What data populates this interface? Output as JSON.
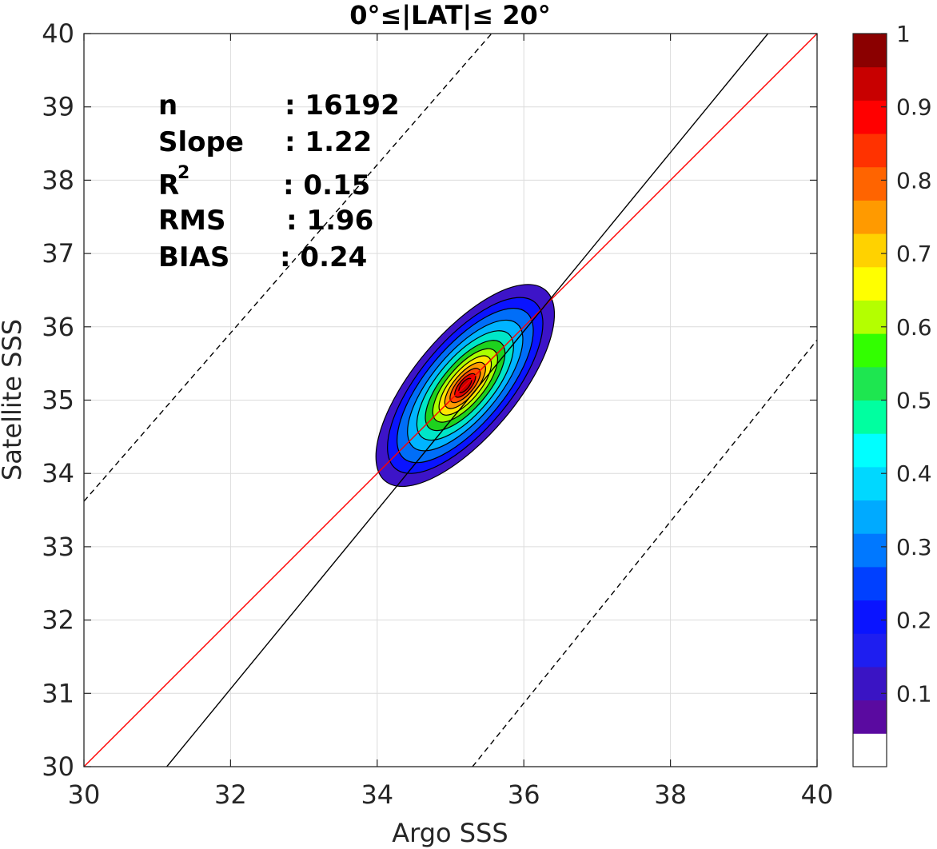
{
  "chart_data": {
    "type": "contour",
    "title": "0°≤|LAT|≤ 20°",
    "xlabel": "Argo SSS",
    "ylabel": "Satellite SSS",
    "xlim": [
      30,
      40
    ],
    "ylim": [
      30,
      40
    ],
    "xticks": [
      "30",
      "32",
      "34",
      "36",
      "38",
      "40"
    ],
    "yticks": [
      "30",
      "31",
      "32",
      "33",
      "34",
      "35",
      "36",
      "37",
      "38",
      "39",
      "40"
    ],
    "grid": true,
    "density_peak": {
      "x": 35.2,
      "y": 35.2
    },
    "stats": {
      "n_label": "n",
      "n_value": ": 16192",
      "slope_label": "Slope",
      "slope_value": ": 1.22",
      "r2_label": "R",
      "r2_sup": "2",
      "r2_value": ": 0.15",
      "rms_label": "RMS",
      "rms_value": ": 1.96",
      "bias_label": "BIAS",
      "bias_value": ": 0.24"
    },
    "lines": [
      {
        "name": "one-to-one-line",
        "color": "#ff0000",
        "style": "solid",
        "points": [
          [
            30,
            30
          ],
          [
            40,
            40
          ]
        ]
      },
      {
        "name": "regression-line",
        "color": "#000000",
        "style": "solid",
        "points": [
          [
            31.13,
            30
          ],
          [
            39.33,
            40
          ]
        ]
      },
      {
        "name": "upper-dashed-line",
        "color": "#000000",
        "style": "dashed",
        "points": [
          [
            30,
            33.62
          ],
          [
            35.56,
            40
          ]
        ]
      },
      {
        "name": "lower-dashed-line",
        "color": "#000000",
        "style": "dashed",
        "points": [
          [
            35.3,
            30
          ],
          [
            40,
            35.82
          ]
        ]
      }
    ],
    "contour_levels": [
      {
        "rx": 1.7,
        "ry": 0.7,
        "color": "#3d14c8"
      },
      {
        "rx": 1.48,
        "ry": 0.61,
        "color": "#0a14ff"
      },
      {
        "rx": 1.3,
        "ry": 0.53,
        "color": "#006ef8"
      },
      {
        "rx": 1.1,
        "ry": 0.45,
        "color": "#00b4ff"
      },
      {
        "rx": 0.92,
        "ry": 0.38,
        "color": "#00e6c8"
      },
      {
        "rx": 0.76,
        "ry": 0.31,
        "color": "#1ed21e"
      },
      {
        "rx": 0.62,
        "ry": 0.25,
        "color": "#aaff00"
      },
      {
        "rx": 0.5,
        "ry": 0.2,
        "color": "#ffe600"
      },
      {
        "rx": 0.39,
        "ry": 0.155,
        "color": "#ff9900"
      },
      {
        "rx": 0.29,
        "ry": 0.115,
        "color": "#ff4a00"
      },
      {
        "rx": 0.2,
        "ry": 0.08,
        "color": "#e60000"
      },
      {
        "rx": 0.12,
        "ry": 0.05,
        "color": "#c40000"
      }
    ],
    "colorbar": {
      "ticks": [
        "1",
        "0.9",
        "0.8",
        "0.7",
        "0.6",
        "0.5",
        "0.4",
        "0.3",
        "0.2",
        "0.1"
      ],
      "tick_values": [
        1,
        0.9,
        0.8,
        0.7,
        0.6,
        0.5,
        0.4,
        0.3,
        0.2,
        0.1
      ],
      "levels": [
        0.05,
        0.1,
        0.15,
        0.2,
        0.25,
        0.3,
        0.35,
        0.4,
        0.45,
        0.5,
        0.55,
        0.6,
        0.65,
        0.7,
        0.75,
        0.8,
        0.85,
        0.9,
        0.95,
        1.0
      ],
      "colors": [
        "#ffffff",
        "#5a0aa0",
        "#3a14c4",
        "#1e1ef0",
        "#0a14ff",
        "#0040ff",
        "#0078ff",
        "#00aaff",
        "#00d8ff",
        "#00ffff",
        "#00ffa0",
        "#1ee650",
        "#32ff00",
        "#b4ff00",
        "#ffff00",
        "#ffd200",
        "#ff9a00",
        "#ff6400",
        "#ff3200",
        "#ff0000",
        "#c80000",
        "#8b0000"
      ]
    }
  }
}
